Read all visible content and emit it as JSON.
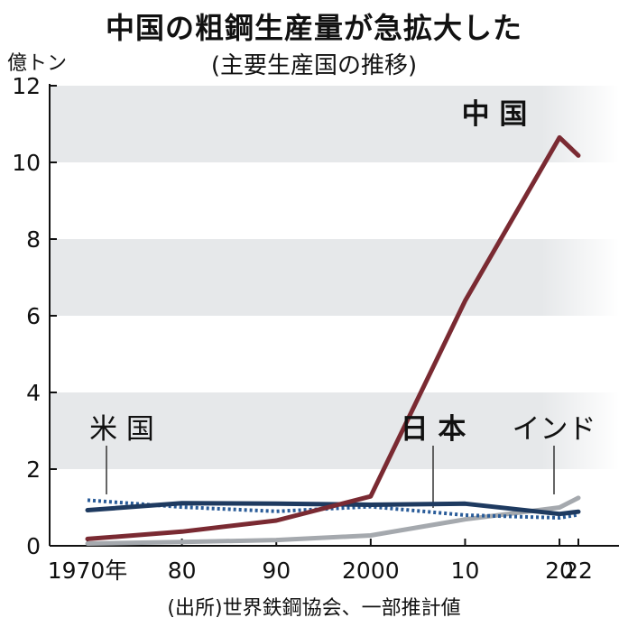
{
  "chart_data": {
    "type": "line",
    "title": "中国の粗鋼生産量が急拡大した",
    "subtitle": "(主要生産国の推移)",
    "ylabel": "億トン",
    "source": "(出所)世界鉄鋼協会、一部推計値",
    "x": [
      1970,
      1980,
      1990,
      2000,
      2010,
      2020,
      2022
    ],
    "x_tick_labels": [
      "1970年",
      "80",
      "90",
      "2000",
      "10",
      "20",
      "22"
    ],
    "ylim": [
      0,
      12
    ],
    "y_ticks": [
      0,
      2,
      4,
      6,
      8,
      10,
      12
    ],
    "grid": "alternating horizontal bands",
    "series": [
      {
        "name": "中 国",
        "values": [
          0.18,
          0.37,
          0.66,
          1.29,
          6.39,
          10.65,
          10.18
        ],
        "color": "#7a2a32",
        "style": "solid",
        "label_weight": "bold"
      },
      {
        "name": "日 本",
        "values": [
          0.93,
          1.11,
          1.1,
          1.07,
          1.1,
          0.83,
          0.89
        ],
        "color": "#1e3a60",
        "style": "solid",
        "label_weight": "bold"
      },
      {
        "name": "米 国",
        "values": [
          1.19,
          1.01,
          0.9,
          1.02,
          0.8,
          0.73,
          0.81
        ],
        "color": "#2a5c99",
        "style": "dotted",
        "label_weight": "normal"
      },
      {
        "name": "インド",
        "values": [
          0.06,
          0.1,
          0.15,
          0.27,
          0.69,
          1.0,
          1.25
        ],
        "color": "#a5a9ae",
        "style": "solid",
        "label_weight": "normal"
      }
    ],
    "colors": {
      "band": "#e6e8ea",
      "axis": "#111111"
    }
  }
}
